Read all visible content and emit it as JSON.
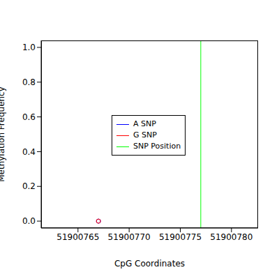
{
  "chart_data": {
    "type": "scatter",
    "x_label": "CpG Coordinates",
    "y_label": "Methylation Frequency",
    "xlim": [
      51900761.4,
      51900782.6
    ],
    "xticks": [
      51900765,
      51900770,
      51900775,
      51900780
    ],
    "ylim": [
      -0.04,
      1.04
    ],
    "yticks": [
      {
        "value": 0,
        "label": "0.0"
      },
      {
        "value": 0.2,
        "label": "0.2"
      },
      {
        "value": 0.4,
        "label": "0.4"
      },
      {
        "value": 0.6,
        "label": "0.6"
      },
      {
        "value": 0.8,
        "label": "0.8"
      },
      {
        "value": 1,
        "label": "1.0"
      }
    ],
    "legend": "right",
    "grid": false,
    "series": [
      {
        "name": "A SNP",
        "color": "#0000ff",
        "marker": "open_circle",
        "x": [
          51900767
        ],
        "values": [
          0
        ]
      },
      {
        "name": "G SNP",
        "color": "#ff0000",
        "marker": "open_circle",
        "x": [
          51900767
        ],
        "values": [
          0
        ]
      },
      {
        "name": "SNP Position",
        "color": "#00ff00",
        "type": "vline",
        "x": [
          51900777
        ]
      }
    ]
  }
}
